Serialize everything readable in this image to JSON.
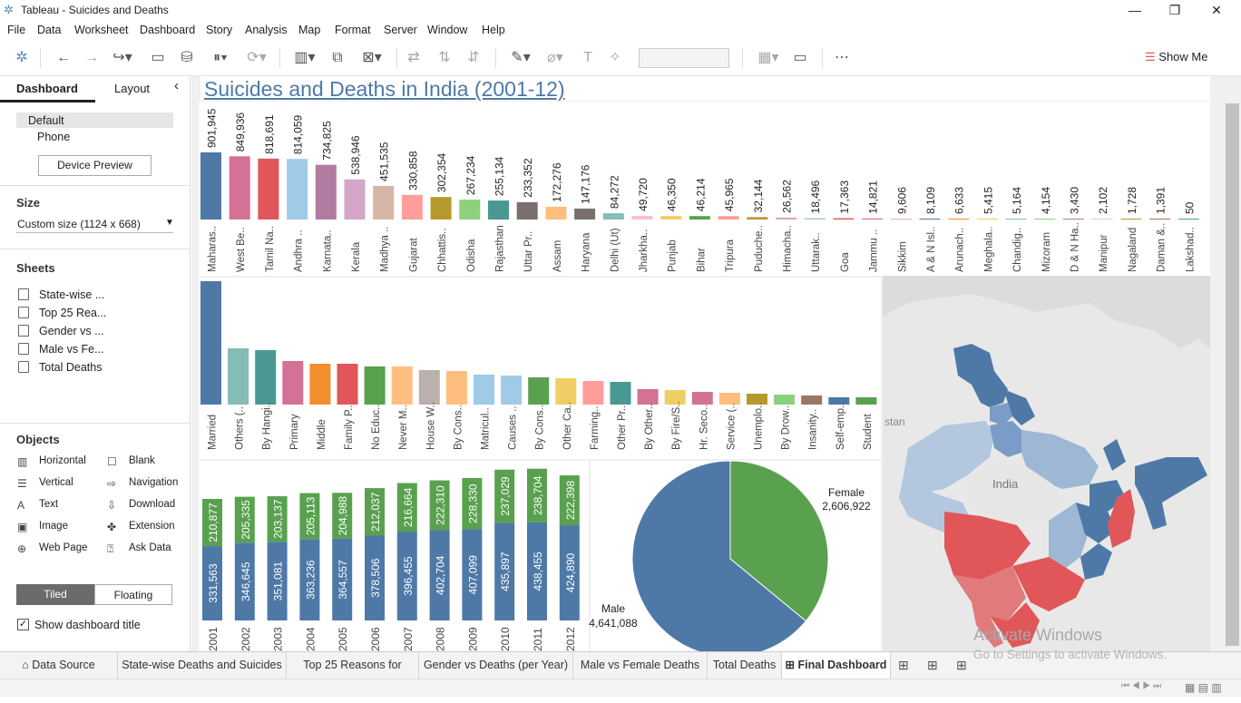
{
  "window": {
    "title": "Tableau - Suicides and Deaths",
    "minimize": "—",
    "restore": "❐",
    "close": "✕"
  },
  "menu": [
    "File",
    "Data",
    "Worksheet",
    "Dashboard",
    "Story",
    "Analysis",
    "Map",
    "Format",
    "Server",
    "Window",
    "Help"
  ],
  "toolbar": {
    "show_me": "Show Me"
  },
  "leftpanel": {
    "tab_dashboard": "Dashboard",
    "tab_layout": "Layout",
    "collapse": "‹",
    "device_default": "Default",
    "device_phone": "Phone",
    "device_preview": "Device Preview",
    "size_heading": "Size",
    "size_value": "Custom size (1124 x 668)",
    "sheets_heading": "Sheets",
    "sheets": [
      "State-wise ...",
      "Top 25 Rea...",
      "Gender vs ...",
      "Male vs Fe...",
      "Total Deaths"
    ],
    "objects_heading": "Objects",
    "objects": [
      {
        "label": "Horizontal",
        "icon": "horizontal-container-icon",
        "glyph": "▥"
      },
      {
        "label": "Blank",
        "icon": "blank-icon",
        "glyph": "☐"
      },
      {
        "label": "Vertical",
        "icon": "vertical-container-icon",
        "glyph": "☰"
      },
      {
        "label": "Navigation",
        "icon": "navigation-icon",
        "glyph": "⇨"
      },
      {
        "label": "Text",
        "icon": "text-icon",
        "glyph": "A"
      },
      {
        "label": "Download",
        "icon": "download-icon",
        "glyph": "⇩"
      },
      {
        "label": "Image",
        "icon": "image-icon",
        "glyph": "▣"
      },
      {
        "label": "Extension",
        "icon": "extension-icon",
        "glyph": "✤"
      },
      {
        "label": "Web Page",
        "icon": "web-page-icon",
        "glyph": "⊕"
      },
      {
        "label": "Ask Data",
        "icon": "ask-data-icon",
        "glyph": "⍰"
      }
    ],
    "tiled": "Tiled",
    "floating": "Floating",
    "show_title_label": "Show dashboard title",
    "show_title_checked": true
  },
  "dashboard": {
    "title": "Suicides and Deaths in India (2001-12)"
  },
  "chart_data": [
    {
      "type": "bar",
      "categories": [
        "Maharas..",
        "West Be..",
        "Tamil Na..",
        "Andhra ..",
        "Karnata..",
        "Kerala",
        "Madhya ..",
        "Gujarat",
        "Chhattis..",
        "Odisha",
        "Rajasthan",
        "Uttar Pr..",
        "Assam",
        "Haryana",
        "Delhi (Ut)",
        "Jharkha..",
        "Punjab",
        "Bihar",
        "Tripura",
        "Puduche..",
        "Himacha..",
        "Uttarak..",
        "Goa",
        "Jammu ..",
        "Sikkim",
        "A & N Isl..",
        "Arunach..",
        "Meghala..",
        "Chandig..",
        "Mizoram",
        "D & N Ha..",
        "Manipur",
        "Nagaland",
        "Daman &..",
        "Lakshad.."
      ],
      "values": [
        901945,
        849936,
        818691,
        814059,
        734825,
        538946,
        451535,
        330858,
        302354,
        267234,
        255134,
        233352,
        172276,
        147176,
        84272,
        49720,
        46350,
        46214,
        45965,
        32144,
        26562,
        18496,
        17363,
        14821,
        9606,
        8109,
        6633,
        5415,
        5164,
        4154,
        3430,
        2102,
        1728,
        1391,
        50
      ],
      "labels": [
        "901,945",
        "849,936",
        "818,691",
        "814,059",
        "734,825",
        "538,946",
        "451,535",
        "330,858",
        "302,354",
        "267,234",
        "255,134",
        "233,352",
        "172,276",
        "147,176",
        "84,272",
        "49,720",
        "46,350",
        "46,214",
        "45,965",
        "32,144",
        "26,562",
        "18,496",
        "17,363",
        "14,821",
        "9,606",
        "8,109",
        "6,633",
        "5,415",
        "5,164",
        "4,154",
        "3,430",
        "2,102",
        "1,728",
        "1,391",
        "50"
      ],
      "colors": [
        "#4e79a7",
        "#d37295",
        "#e15759",
        "#a0cbe8",
        "#b07aa1",
        "#d4a6c8",
        "#d7b5a6",
        "#ff9d9a",
        "#b6992d",
        "#8cd17d",
        "#499894",
        "#79706e",
        "#ffbe7d",
        "#79706e",
        "#86bcb6",
        "#fabfd2",
        "#f1ce63",
        "#59a14f",
        "#ff9d9a",
        "#b6992d",
        "#d4a6c8",
        "#a0cbe8",
        "#e15759",
        "#d37295",
        "#d7b5a6",
        "#4e79a7",
        "#f28e2b",
        "#f1ce63",
        "#86bcb6",
        "#8cd17d",
        "#b07aa1",
        "#fabfd2",
        "#b6992d",
        "#9d7660",
        "#499894"
      ]
    },
    {
      "type": "bar",
      "categories": [
        "Married",
        "Others (..",
        "By Hangi..",
        "Primary",
        "Middle",
        "Family P..",
        "No Educ..",
        "Never M..",
        "House W..",
        "By Cons..",
        "Matricul..",
        "Causes ..",
        "By Cons..",
        "Other Ca..",
        "Farming..",
        "Other Pr..",
        "By Other..",
        "By Fire/S..",
        "Hr. Seco..",
        "Service (..",
        "Unemplo..",
        "By Drow..",
        "Insanity..",
        "Self-emp..",
        "Student"
      ],
      "values": [
        136,
        62,
        60,
        48,
        45,
        45,
        42,
        42,
        38,
        37,
        33,
        32,
        30,
        29,
        26,
        25,
        17,
        16,
        14,
        13,
        12,
        11,
        10,
        8,
        8
      ],
      "colors": [
        "#4e79a7",
        "#86bcb6",
        "#499894",
        "#d37295",
        "#f28e2b",
        "#e15759",
        "#59a14f",
        "#ffbe7d",
        "#bab0ac",
        "#ffbe7d",
        "#a0cbe8",
        "#a0cbe8",
        "#59a14f",
        "#f1ce63",
        "#ff9d9a",
        "#499894",
        "#d37295",
        "#f1ce63",
        "#d37295",
        "#ffbe7d",
        "#b6992d",
        "#8cd17d",
        "#9d7660",
        "#4e79a7",
        "#59a14f"
      ]
    },
    {
      "type": "bar",
      "stacked": true,
      "categories": [
        "2001",
        "2002",
        "2003",
        "2004",
        "2005",
        "2006",
        "2007",
        "2008",
        "2009",
        "2010",
        "2011",
        "2012"
      ],
      "series": [
        {
          "name": "Male",
          "color": "#4e79a7",
          "values": [
            331563,
            346645,
            351081,
            363236,
            364557,
            378506,
            396455,
            402704,
            407099,
            435897,
            438455,
            424890
          ],
          "labels": [
            "331,563",
            "346,645",
            "351,081",
            "363,236",
            "364,557",
            "378,506",
            "396,455",
            "402,704",
            "407,099",
            "435,897",
            "438,455",
            "424,890"
          ]
        },
        {
          "name": "Female",
          "color": "#59a14f",
          "values": [
            210877,
            205335,
            203137,
            205113,
            204988,
            212037,
            216664,
            222310,
            228330,
            237029,
            238704,
            222398
          ],
          "labels": [
            "210,877",
            "205,335",
            "203,137",
            "205,113",
            "204,988",
            "212,037",
            "216,664",
            "222,310",
            "228,330",
            "237,029",
            "238,704",
            "222,398"
          ]
        }
      ]
    },
    {
      "type": "pie",
      "slices": [
        {
          "name": "Female",
          "value": 2606922,
          "label": "2,606,922",
          "color": "#59a14f"
        },
        {
          "name": "Male",
          "value": 4641088,
          "label": "4,641,088",
          "color": "#4e79a7"
        }
      ]
    }
  ],
  "map": {
    "country_label": "India",
    "neighbor_label": "stan"
  },
  "tabs": [
    "Data Source",
    "State-wise Deaths and Suicides",
    "Top 25 Reasons for Death",
    "Gender vs Deaths (per Year)",
    "Male vs Female Deaths",
    "Total Deaths",
    "Final Dashboard"
  ],
  "active_tab": "Final Dashboard",
  "watermark": {
    "line1": "Activate Windows",
    "line2": "Go to Settings to activate Windows."
  }
}
